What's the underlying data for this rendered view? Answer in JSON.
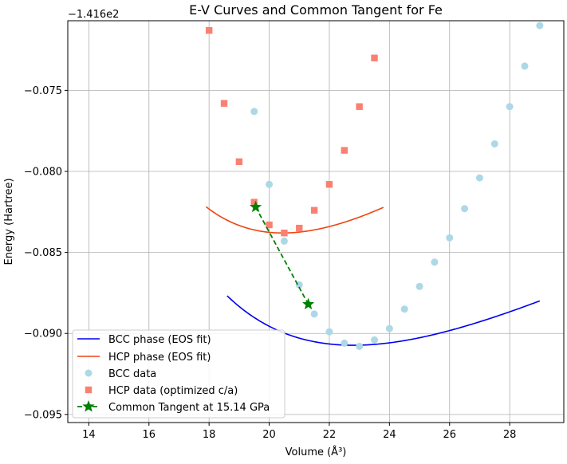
{
  "chart_data": {
    "type": "line",
    "title": "E-V Curves and Common Tangent for Fe",
    "xlabel": "Volume (Å³)",
    "ylabel": "Energy (Hartree)",
    "offset_label": "−1.416e2",
    "xlim": [
      13.3,
      29.8
    ],
    "ylim": [
      -0.0955,
      -0.0707
    ],
    "xticks": [
      14,
      16,
      18,
      20,
      22,
      24,
      26,
      28
    ],
    "yticks": [
      -0.095,
      -0.09,
      -0.085,
      -0.08,
      -0.075
    ],
    "ytick_labels": [
      "−0.095",
      "−0.090",
      "−0.085",
      "−0.080",
      "−0.075"
    ],
    "grid": true,
    "legend_position": "lower-left",
    "series": [
      {
        "name": "BCC phase (EOS fit)",
        "kind": "curve",
        "color": "#0000ee",
        "eos": {
          "E0": -0.09073,
          "V0": 22.8,
          "B0": 0.00525,
          "Bp": 5.0
        },
        "v_range": [
          18.6,
          29.0
        ]
      },
      {
        "name": "HCP phase (EOS fit)",
        "kind": "curve",
        "color": "#ee4411",
        "eos": {
          "E0": -0.0838,
          "V0": 20.45,
          "B0": 0.0078,
          "Bp": 5.0
        },
        "v_range": [
          17.9,
          23.8
        ]
      },
      {
        "name": "BCC data",
        "kind": "points",
        "color": "#add8e6",
        "marker": "circle",
        "x": [
          19.5,
          20.0,
          20.5,
          21.0,
          21.5,
          22.0,
          22.5,
          23.0,
          23.5,
          24.0,
          24.5,
          25.0,
          25.5,
          26.0,
          26.5,
          27.0,
          27.5,
          28.0,
          28.5,
          29.0
        ],
        "y": [
          -0.0763,
          -0.0808,
          -0.0843,
          -0.087,
          -0.0888,
          -0.0899,
          -0.0906,
          -0.0908,
          -0.0904,
          -0.0897,
          -0.0885,
          -0.0871,
          -0.0856,
          -0.0841,
          -0.0823,
          -0.0804,
          -0.0783,
          -0.076,
          -0.0735,
          -0.071
        ]
      },
      {
        "name": "HCP data (optimized c/a)",
        "kind": "points",
        "color": "#fa8072",
        "marker": "square",
        "x": [
          18.0,
          18.5,
          19.0,
          19.5,
          20.0,
          20.5,
          21.0,
          21.5,
          22.0,
          22.5,
          23.0,
          23.5
        ],
        "y": [
          -0.0713,
          -0.0758,
          -0.0794,
          -0.0819,
          -0.0833,
          -0.0838,
          -0.0835,
          -0.0824,
          -0.0808,
          -0.0787,
          -0.076,
          -0.073
        ]
      },
      {
        "name": "Common Tangent at 15.14 GPa",
        "kind": "tangent",
        "color": "#008000",
        "marker": "star",
        "x": [
          19.55,
          21.3
        ],
        "y": [
          -0.0822,
          -0.0882
        ]
      }
    ]
  }
}
